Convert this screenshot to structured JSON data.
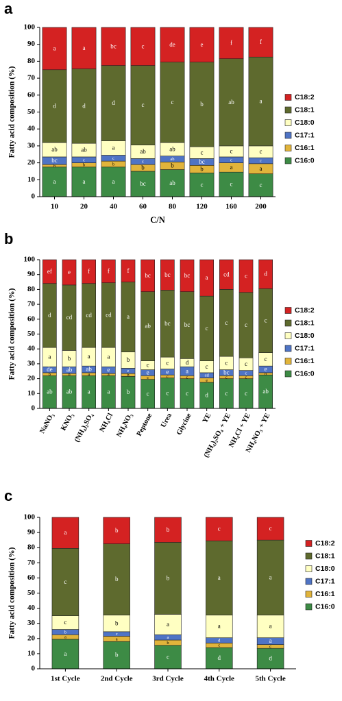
{
  "chart_data": [
    {
      "type": "bar",
      "stacked": true,
      "panel": "a",
      "x_label": "C/N",
      "y_label": "Fatty acid composition (%)",
      "categories": [
        "10",
        "20",
        "40",
        "60",
        "80",
        "120",
        "160",
        "200"
      ],
      "ylim": [
        0,
        100
      ],
      "yticks": [
        0,
        10,
        20,
        30,
        40,
        50,
        60,
        70,
        80,
        90,
        100
      ],
      "series": [
        {
          "name": "C16:0",
          "color": "#3d8b45",
          "values": [
            17.5,
            17.5,
            17.5,
            15,
            16,
            14,
            14.5,
            13.5
          ],
          "letters": [
            "a",
            "a",
            "a",
            "bc",
            "ab",
            "c",
            "c",
            "c"
          ]
        },
        {
          "name": "C16:1",
          "color": "#e1b43b",
          "values": [
            1.5,
            2.5,
            3.5,
            4,
            4.5,
            4.5,
            5.5,
            6
          ],
          "letters": [
            "b",
            "b",
            "b",
            "b",
            "b",
            "b",
            "a",
            "a"
          ]
        },
        {
          "name": "C17:1",
          "color": "#4f74c5",
          "values": [
            4.5,
            3.5,
            3.5,
            3.5,
            3.5,
            4,
            3.5,
            3.5
          ],
          "letters": [
            "bc",
            "c",
            "c",
            "c",
            "ab",
            "bc",
            "c",
            "c"
          ]
        },
        {
          "name": "C18:0",
          "color": "#ffffc2",
          "values": [
            8.5,
            8,
            8.5,
            8,
            8,
            7,
            6.5,
            7
          ],
          "letters": [
            "ab",
            "ab",
            "a",
            "ab",
            "ab",
            "c",
            "c",
            "c"
          ]
        },
        {
          "name": "C18:1",
          "color": "#5e6a2e",
          "values": [
            43,
            44,
            44.5,
            47,
            47.5,
            50,
            51.5,
            52.5
          ],
          "letters": [
            "d",
            "d",
            "d",
            "c",
            "c",
            "b",
            "ab",
            "a"
          ]
        },
        {
          "name": "C18:2",
          "color": "#d42222",
          "values": [
            25,
            24.5,
            22.5,
            22.5,
            20.5,
            20.5,
            18.5,
            17.5
          ],
          "letters": [
            "a",
            "a",
            "bc",
            "c",
            "de",
            "e",
            "f",
            "f"
          ]
        }
      ]
    },
    {
      "type": "bar",
      "stacked": true,
      "panel": "b",
      "y_label": "Fatty acid composition (%)",
      "categories": [
        "NaNO₃",
        "KNO₃",
        "(NH₄)₂SO₄",
        "NH₄Cl",
        "NH₄NO₃",
        "Peptone",
        "Urea",
        "Glycine",
        "YE",
        "(NH₄)₂SO₄ + YE",
        "NH₄Cl + YE",
        "NH₄NO₃ + YE"
      ],
      "ylim": [
        0,
        100
      ],
      "yticks": [
        0,
        10,
        20,
        30,
        40,
        50,
        60,
        70,
        80,
        90,
        100
      ],
      "series": [
        {
          "name": "C16:0",
          "color": "#3d8b45",
          "values": [
            22,
            22,
            22,
            22,
            21.5,
            19.5,
            20.5,
            20,
            17.5,
            20,
            20,
            22.5
          ],
          "letters": [
            "ab",
            "ab",
            "a",
            "a",
            "b",
            "c",
            "c",
            "c",
            "d",
            "c",
            "c",
            "ab"
          ]
        },
        {
          "name": "C16:1",
          "color": "#e1b43b",
          "values": [
            2,
            1.5,
            2,
            1.5,
            2,
            2.5,
            2,
            2,
            3,
            2,
            2,
            1.5
          ],
          "letters": [
            "b",
            "b",
            "a",
            "a",
            "b",
            "c",
            "c",
            "c",
            "e",
            "c",
            "c",
            "b"
          ]
        },
        {
          "name": "C17:1",
          "color": "#4f74c5",
          "values": [
            4,
            4.5,
            4.5,
            4.5,
            3.5,
            4,
            4,
            6,
            3.5,
            4,
            3.5,
            4.5
          ],
          "letters": [
            "de",
            "ab",
            "ab",
            "e",
            "e",
            "e",
            "e",
            "a",
            "cd",
            "bc",
            "c",
            "e"
          ]
        },
        {
          "name": "C18:0",
          "color": "#ffffc2",
          "values": [
            13,
            11,
            12.5,
            13,
            11,
            6,
            8,
            5.5,
            8,
            9,
            8.5,
            9
          ],
          "letters": [
            "a",
            "b",
            "a",
            "a",
            "b",
            "c",
            "c",
            "d",
            "c",
            "c",
            "c",
            "c"
          ]
        },
        {
          "name": "C18:1",
          "color": "#5e6a2e",
          "values": [
            43,
            44,
            43,
            43.5,
            47,
            46.5,
            45,
            45,
            43.5,
            45,
            44,
            43
          ],
          "letters": [
            "d",
            "cd",
            "cd",
            "cd",
            "a",
            "ab",
            "bc",
            "bc",
            "c",
            "c",
            "c",
            "c"
          ]
        },
        {
          "name": "C18:2",
          "color": "#d42222",
          "values": [
            16,
            17,
            16,
            15.5,
            15,
            21.5,
            20.5,
            21.5,
            24.5,
            20,
            22,
            19.5
          ],
          "letters": [
            "ef",
            "e",
            "f",
            "f",
            "f",
            "bc",
            "bc",
            "bc",
            "a",
            "cd",
            "c",
            "d"
          ]
        }
      ]
    },
    {
      "type": "bar",
      "stacked": true,
      "panel": "c",
      "y_label": "Fatty acid composition (%)",
      "categories": [
        "1st Cycle",
        "2nd Cycle",
        "3rd Cycle",
        "4th Cycle",
        "5th Cycle"
      ],
      "ylim": [
        0,
        100
      ],
      "yticks": [
        0,
        10,
        20,
        30,
        40,
        50,
        60,
        70,
        80,
        90,
        100
      ],
      "series": [
        {
          "name": "C16:0",
          "color": "#3d8b45",
          "values": [
            19.5,
            18,
            15.5,
            14,
            13.5
          ],
          "letters": [
            "a",
            "b",
            "c",
            "d",
            "d"
          ]
        },
        {
          "name": "C16:1",
          "color": "#e1b43b",
          "values": [
            3,
            3.5,
            3.5,
            3,
            2.5
          ],
          "letters": [
            "a",
            "a",
            "b",
            "c",
            "c"
          ]
        },
        {
          "name": "C17:1",
          "color": "#4f74c5",
          "values": [
            3.5,
            3,
            3.5,
            3.5,
            4.5
          ],
          "letters": [
            "b",
            "c",
            "a",
            "d",
            "a"
          ]
        },
        {
          "name": "C18:0",
          "color": "#ffffc2",
          "values": [
            9,
            11,
            13.5,
            15,
            15
          ],
          "letters": [
            "c",
            "b",
            "a",
            "a",
            "a"
          ]
        },
        {
          "name": "C18:1",
          "color": "#5e6a2e",
          "values": [
            44.5,
            47,
            47.5,
            49,
            49.5
          ],
          "letters": [
            "c",
            "b",
            "b",
            "a",
            "a"
          ]
        },
        {
          "name": "C18:2",
          "color": "#d42222",
          "values": [
            20.5,
            17.5,
            16.5,
            15.5,
            15
          ],
          "letters": [
            "a",
            "b",
            "b",
            "c",
            "c"
          ]
        }
      ]
    }
  ]
}
